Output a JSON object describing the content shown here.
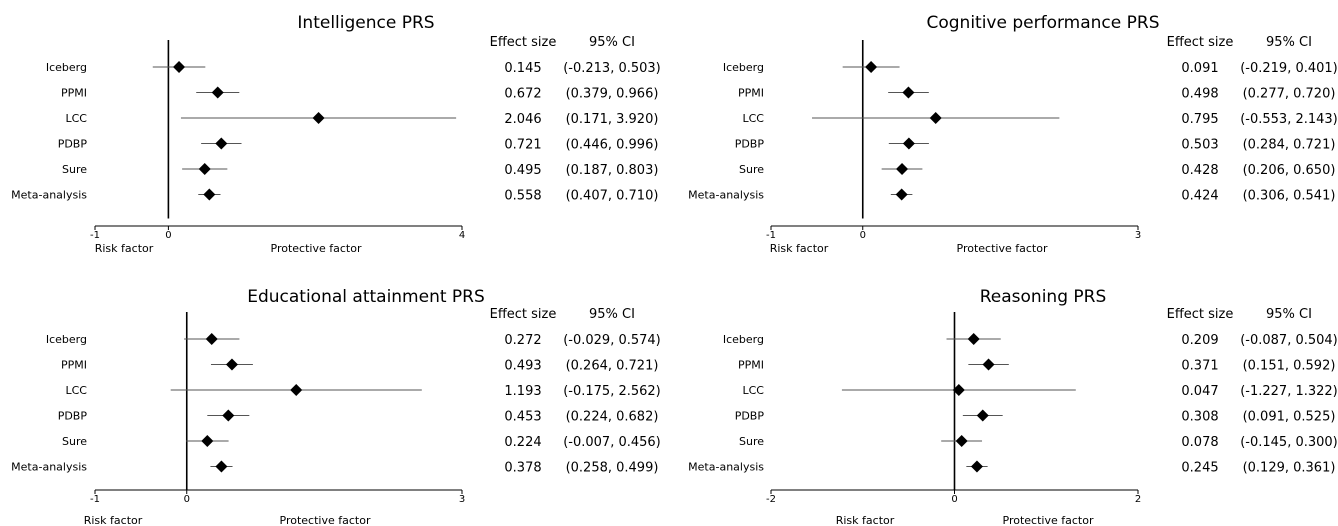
{
  "chart_data": [
    {
      "type": "forest",
      "title": "Intelligence PRS",
      "header_effect": "Effect size",
      "header_ci": "95% CI",
      "studies": [
        "Iceberg",
        "PPMI",
        "LCC",
        "PDBP",
        "Sure",
        "Meta-analysis"
      ],
      "estimates": [
        0.145,
        0.672,
        2.046,
        0.721,
        0.495,
        0.558
      ],
      "ci_low": [
        -0.213,
        0.379,
        0.171,
        0.446,
        0.187,
        0.407
      ],
      "ci_high": [
        0.503,
        0.966,
        3.92,
        0.996,
        0.803,
        0.71
      ],
      "effect_labels": [
        "0.145",
        "0.672",
        "2.046",
        "0.721",
        "0.495",
        "0.558"
      ],
      "ci_labels": [
        "(-0.213, 0.503)",
        "(0.379, 0.966)",
        "(0.171, 3.920)",
        "(0.446, 0.996)",
        "(0.187, 0.803)",
        "(0.407, 0.710)"
      ],
      "xlim": [
        -1,
        4
      ],
      "xticks": [
        "-1",
        "0",
        "4"
      ],
      "risk_label": "Risk factor",
      "protective_label": "Protective factor"
    },
    {
      "type": "forest",
      "title": "Cognitive performance PRS",
      "header_effect": "Effect size",
      "header_ci": "95% CI",
      "studies": [
        "Iceberg",
        "PPMI",
        "LCC",
        "PDBP",
        "Sure",
        "Meta-analysis"
      ],
      "estimates": [
        0.091,
        0.498,
        0.795,
        0.503,
        0.428,
        0.424
      ],
      "ci_low": [
        -0.219,
        0.277,
        -0.553,
        0.284,
        0.206,
        0.306
      ],
      "ci_high": [
        0.401,
        0.72,
        2.143,
        0.721,
        0.65,
        0.541
      ],
      "effect_labels": [
        "0.091",
        "0.498",
        "0.795",
        "0.503",
        "0.428",
        "0.424"
      ],
      "ci_labels": [
        "(-0.219, 0.401)",
        "(0.277, 0.720)",
        "(-0.553, 2.143)",
        "(0.284, 0.721)",
        "(0.206, 0.650)",
        "(0.306, 0.541)"
      ],
      "xlim": [
        -1,
        3
      ],
      "xticks": [
        "-1",
        "0",
        "3"
      ],
      "risk_label": "Risk factor",
      "protective_label": "Protective factor"
    },
    {
      "type": "forest",
      "title": "Educational attainment PRS",
      "header_effect": "Effect size",
      "header_ci": "95% CI",
      "studies": [
        "Iceberg",
        "PPMI",
        "LCC",
        "PDBP",
        "Sure",
        "Meta-analysis"
      ],
      "estimates": [
        0.272,
        0.493,
        1.193,
        0.453,
        0.224,
        0.378
      ],
      "ci_low": [
        -0.029,
        0.264,
        -0.175,
        0.224,
        -0.007,
        0.258
      ],
      "ci_high": [
        0.574,
        0.721,
        2.562,
        0.682,
        0.456,
        0.499
      ],
      "effect_labels": [
        "0.272",
        "0.493",
        "1.193",
        "0.453",
        "0.224",
        "0.378"
      ],
      "ci_labels": [
        "(-0.029, 0.574)",
        "(0.264, 0.721)",
        "(-0.175, 2.562)",
        "(0.224, 0.682)",
        "(-0.007, 0.456)",
        "(0.258, 0.499)"
      ],
      "xlim": [
        -1,
        3
      ],
      "xticks": [
        "-1",
        "0",
        "3"
      ],
      "risk_label": "Risk factor",
      "protective_label": "Protective factor"
    },
    {
      "type": "forest",
      "title": "Reasoning PRS",
      "header_effect": "Effect size",
      "header_ci": "95% CI",
      "studies": [
        "Iceberg",
        "PPMI",
        "LCC",
        "PDBP",
        "Sure",
        "Meta-analysis"
      ],
      "estimates": [
        0.209,
        0.371,
        0.047,
        0.308,
        0.078,
        0.245
      ],
      "ci_low": [
        -0.087,
        0.151,
        -1.227,
        0.091,
        -0.145,
        0.129
      ],
      "ci_high": [
        0.504,
        0.592,
        1.322,
        0.525,
        0.3,
        0.361
      ],
      "effect_labels": [
        "0.209",
        "0.371",
        "0.047",
        "0.308",
        "0.078",
        "0.245"
      ],
      "ci_labels": [
        "(-0.087, 0.504)",
        "(0.151, 0.592)",
        "(-1.227, 1.322)",
        "(0.091, 0.525)",
        "(-0.145, 0.300)",
        "(0.129, 0.361)"
      ],
      "xlim": [
        -2,
        2
      ],
      "xticks": [
        "-2",
        "0",
        "2"
      ],
      "risk_label": "Risk factor",
      "protective_label": "Protective factor"
    }
  ]
}
